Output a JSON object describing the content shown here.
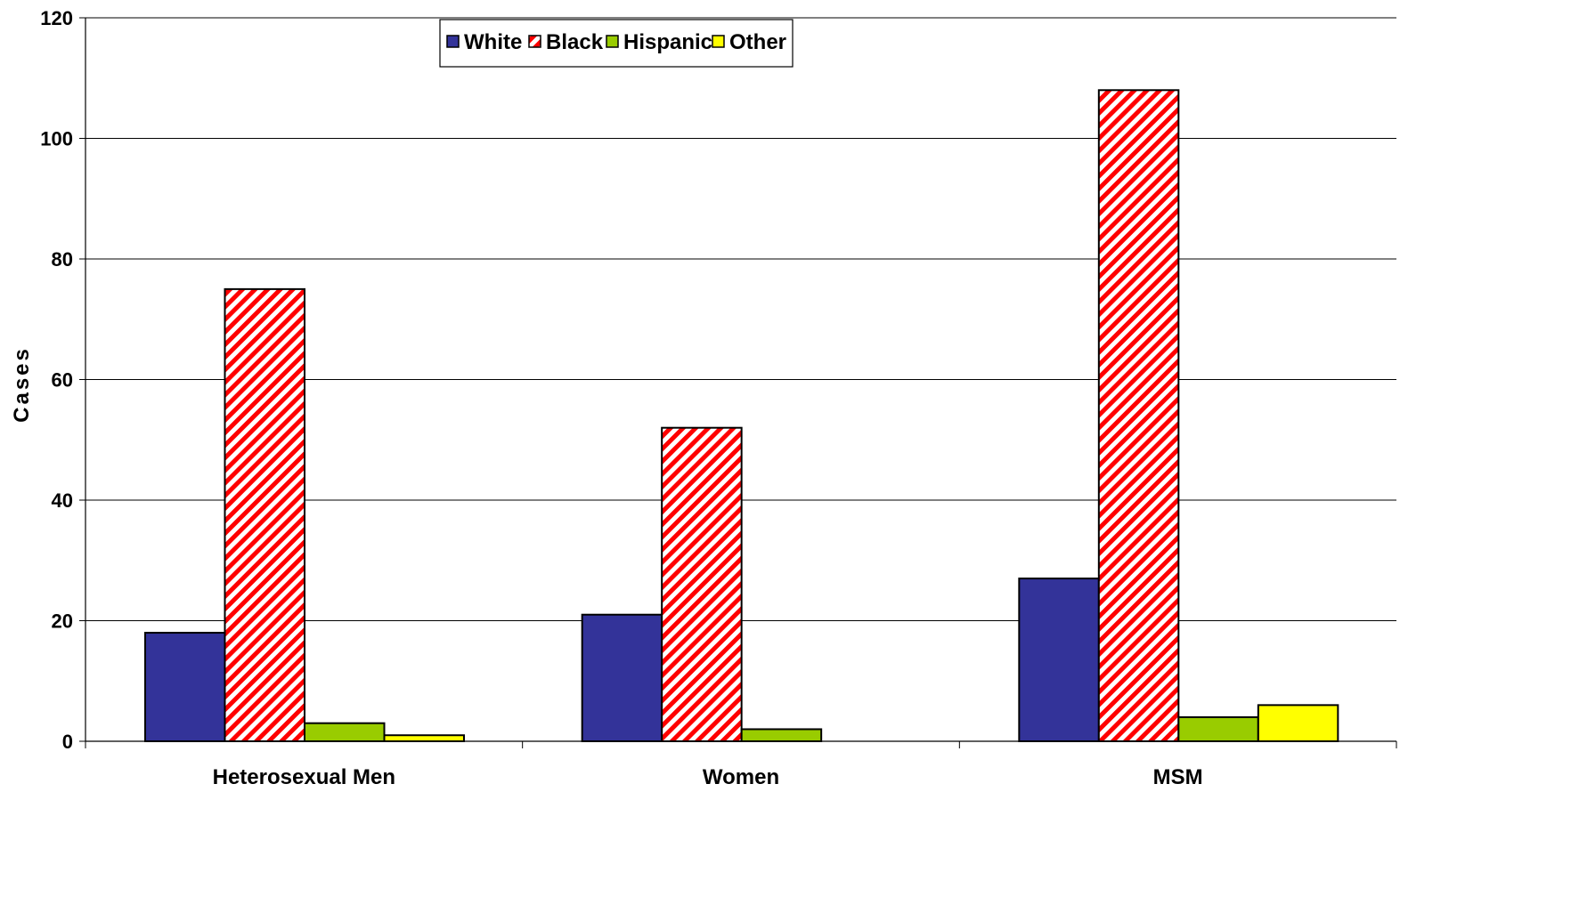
{
  "chart_data": {
    "type": "bar",
    "title": "",
    "xlabel": "",
    "ylabel": "Cases",
    "ylim": [
      0,
      120
    ],
    "yticks": [
      0,
      20,
      40,
      60,
      80,
      100,
      120
    ],
    "grid": true,
    "legend_position": "top-center",
    "categories": [
      "Heterosexual Men",
      "Women",
      "MSM"
    ],
    "series": [
      {
        "name": "White",
        "values": [
          18,
          21,
          27
        ],
        "color": "#333399",
        "pattern": "solid"
      },
      {
        "name": "Black",
        "values": [
          75,
          52,
          108
        ],
        "color": "#ff0000",
        "pattern": "diagonal-stripes"
      },
      {
        "name": "Hispanic",
        "values": [
          3,
          2,
          4
        ],
        "color": "#99cc00",
        "pattern": "solid"
      },
      {
        "name": "Other",
        "values": [
          1,
          0,
          6
        ],
        "color": "#ffff00",
        "pattern": "solid"
      }
    ]
  }
}
